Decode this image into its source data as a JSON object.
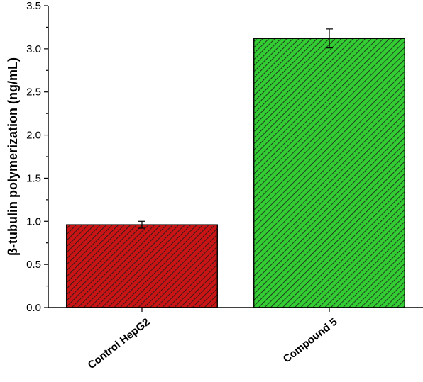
{
  "chart_data": {
    "type": "bar",
    "title": "",
    "xlabel": "",
    "ylabel": "β-tubulin polymerization (ng/mL)",
    "ylim": [
      0,
      3.5
    ],
    "yticks": [
      "0.0",
      "0.5",
      "1.0",
      "1.5",
      "2.0",
      "2.5",
      "3.0",
      "3.5"
    ],
    "categories": [
      "Control HepG2",
      "Compound 5"
    ],
    "values": [
      0.96,
      3.12
    ],
    "errors": [
      0.04,
      0.11
    ],
    "colors": [
      "#c81414",
      "#33cc33"
    ],
    "pattern": "diagonal-hatch",
    "grid": false,
    "legend": "none"
  }
}
